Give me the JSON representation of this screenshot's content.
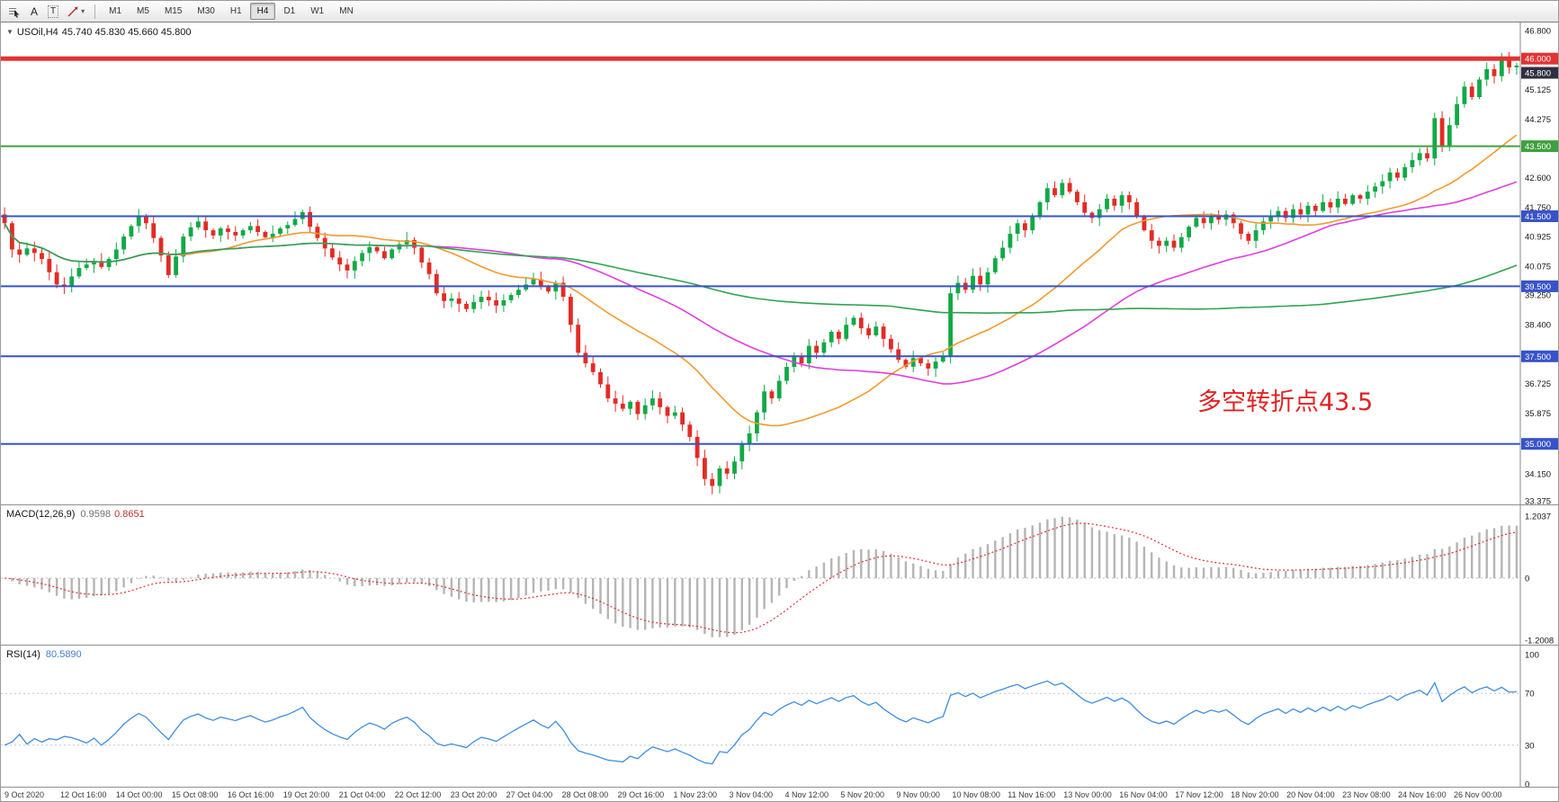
{
  "toolbar": {
    "text_tool_label": "A",
    "textbox_tool_label": "T",
    "caret_glyph": "▾",
    "timeframes": [
      "M1",
      "M5",
      "M15",
      "M30",
      "H1",
      "H4",
      "D1",
      "W1",
      "MN"
    ],
    "active_timeframe": "H4"
  },
  "main_chart": {
    "collapse_glyph": "▼",
    "symbol_period": "USOil,H4",
    "ohlc_text": "45.740 45.830 45.660 45.800",
    "annotation": "多空转折点43.5",
    "annotation_color": "#e02323",
    "y_axis_labels": [
      46.8,
      45.125,
      44.275,
      42.6,
      41.75,
      40.925,
      40.075,
      39.25,
      38.4,
      36.725,
      35.875,
      34.15,
      33.375
    ],
    "price_badges": [
      {
        "price": 46.0,
        "label": "46.000",
        "color": "#e23333",
        "dy": 0
      },
      {
        "price": 45.8,
        "label": "45.800",
        "color": "#2f2f3f",
        "dy": 8
      },
      {
        "price": 43.5,
        "label": "43.500",
        "color": "#3fa03f",
        "dy": 0
      },
      {
        "price": 41.5,
        "label": "41.500",
        "color": "#3753c8",
        "dy": 0
      },
      {
        "price": 39.5,
        "label": "39.500",
        "color": "#3753c8",
        "dy": 0
      },
      {
        "price": 37.5,
        "label": "37.500",
        "color": "#3753c8",
        "dy": 0
      },
      {
        "price": 35.0,
        "label": "35.000",
        "color": "#3753c8",
        "dy": 0
      }
    ],
    "hlines": [
      {
        "price": 46.0,
        "color": "#e23333",
        "thickness": 5
      },
      {
        "price": 43.5,
        "color": "#3fa03f",
        "thickness": 2
      },
      {
        "price": 41.5,
        "color": "#3753c8",
        "thickness": 2
      },
      {
        "price": 39.5,
        "color": "#3753c8",
        "thickness": 2
      },
      {
        "price": 37.5,
        "color": "#3753c8",
        "thickness": 2
      },
      {
        "price": 35.0,
        "color": "#3753c8",
        "thickness": 2
      }
    ],
    "price_range": {
      "min": 33.375,
      "max": 46.8
    }
  },
  "macd": {
    "label": "MACD(12,26,9)",
    "main_value": "0.9598",
    "signal_value": "0.8651",
    "histogram_color": "#b5b5b5",
    "signal_color": "#e03030",
    "axis": [
      {
        "value": 1.2037,
        "label": "1.2037"
      },
      {
        "value": 0,
        "label": "0"
      },
      {
        "value": -1.2008,
        "label": "-1.2008"
      }
    ]
  },
  "rsi": {
    "label": "RSI(14)",
    "value": "80.5890",
    "line_color": "#3e8ede",
    "levels": [
      70,
      30
    ],
    "axis": [
      {
        "value": 100,
        "label": "100"
      },
      {
        "value": 70,
        "label": "70"
      },
      {
        "value": 30,
        "label": "30"
      },
      {
        "value": 0,
        "label": "0"
      }
    ]
  },
  "chart_data": {
    "type": "candlestick",
    "symbol": "USOil",
    "period": "H4",
    "title": "USOil,H4",
    "last_ohlc": {
      "open": 45.74,
      "high": 45.83,
      "low": 45.66,
      "close": 45.8
    },
    "first_open": 41.55,
    "ylim": [
      33.375,
      46.8
    ],
    "levels": [
      46.0,
      43.5,
      41.5,
      39.5,
      37.5,
      35.0
    ],
    "candle_colors": {
      "up": "#11a946",
      "down": "#e32b24"
    },
    "moving_averages": [
      {
        "name": "ma-fast",
        "period": 24,
        "color": "#f09b2d"
      },
      {
        "name": "ma-mid",
        "period": 52,
        "color": "#e03ee0"
      },
      {
        "name": "ma-slow",
        "period": 120,
        "color": "#2fa44f"
      }
    ],
    "indicators": [
      {
        "name": "MACD",
        "params": "12,26,9",
        "main": 0.9598,
        "signal": 0.8651,
        "range": [
          -1.2008,
          1.2037
        ]
      },
      {
        "name": "RSI",
        "params": "14",
        "value": 80.589,
        "range": [
          0,
          100
        ]
      }
    ],
    "closes": [
      41.3,
      40.55,
      40.4,
      40.58,
      40.45,
      40.28,
      39.9,
      39.55,
      39.5,
      39.78,
      40.02,
      40.12,
      40.22,
      40.05,
      40.28,
      40.55,
      40.92,
      41.22,
      41.48,
      41.3,
      40.88,
      40.38,
      39.82,
      40.35,
      40.92,
      41.18,
      41.35,
      41.1,
      40.95,
      41.15,
      41.05,
      40.95,
      41.1,
      41.22,
      41.05,
      40.9,
      41.0,
      41.15,
      41.25,
      41.42,
      41.62,
      41.2,
      40.88,
      40.58,
      40.32,
      40.12,
      39.95,
      40.22,
      40.45,
      40.62,
      40.5,
      40.3,
      40.55,
      40.7,
      40.82,
      40.6,
      40.18,
      39.85,
      39.3,
      39.08,
      39.15,
      39.0,
      38.85,
      39.05,
      39.2,
      39.1,
      38.95,
      39.1,
      39.25,
      39.4,
      39.55,
      39.7,
      39.5,
      39.35,
      39.6,
      39.2,
      38.4,
      37.6,
      37.3,
      37.05,
      36.7,
      36.3,
      36.15,
      36.0,
      36.2,
      35.85,
      36.1,
      36.3,
      36.05,
      35.8,
      35.9,
      35.55,
      35.2,
      34.6,
      34.0,
      33.8,
      34.3,
      34.15,
      34.5,
      35.0,
      35.3,
      35.9,
      36.5,
      36.3,
      36.8,
      37.2,
      37.5,
      37.3,
      37.8,
      37.6,
      37.9,
      38.2,
      38.0,
      38.4,
      38.6,
      38.3,
      38.1,
      38.35,
      38.0,
      37.7,
      37.4,
      37.2,
      37.45,
      37.3,
      37.15,
      37.35,
      37.5,
      39.3,
      39.6,
      39.4,
      39.8,
      39.55,
      39.9,
      40.3,
      40.6,
      41.0,
      41.3,
      41.1,
      41.5,
      41.9,
      42.3,
      42.1,
      42.45,
      42.2,
      41.9,
      41.6,
      41.45,
      41.7,
      42.0,
      41.8,
      42.1,
      41.9,
      41.5,
      41.1,
      40.8,
      40.65,
      40.8,
      40.6,
      40.9,
      41.2,
      41.45,
      41.3,
      41.5,
      41.4,
      41.55,
      41.3,
      41.0,
      40.8,
      41.1,
      41.35,
      41.5,
      41.65,
      41.45,
      41.7,
      41.55,
      41.8,
      41.65,
      41.9,
      41.75,
      42.0,
      41.85,
      42.1,
      42.0,
      42.2,
      42.35,
      42.5,
      42.75,
      42.6,
      42.9,
      43.1,
      43.3,
      43.15,
      44.3,
      43.5,
      44.1,
      44.7,
      45.2,
      44.9,
      45.4,
      45.7,
      45.5,
      46.0,
      45.75,
      45.8
    ],
    "x_labels": [
      "9 Oct 2020",
      "12 Oct 16:00",
      "14 Oct 00:00",
      "15 Oct 08:00",
      "16 Oct 16:00",
      "19 Oct 20:00",
      "21 Oct 04:00",
      "22 Oct 12:00",
      "23 Oct 20:00",
      "27 Oct 04:00",
      "28 Oct 08:00",
      "29 Oct 16:00",
      "1 Nov 23:00",
      "3 Nov 04:00",
      "4 Nov 12:00",
      "5 Nov 20:00",
      "9 Nov 00:00",
      "10 Nov 08:00",
      "11 Nov 16:00",
      "13 Nov 00:00",
      "16 Nov 04:00",
      "17 Nov 12:00",
      "18 Nov 20:00",
      "20 Nov 04:00",
      "23 Nov 08:00",
      "24 Nov 16:00",
      "26 Nov 00:00"
    ]
  }
}
